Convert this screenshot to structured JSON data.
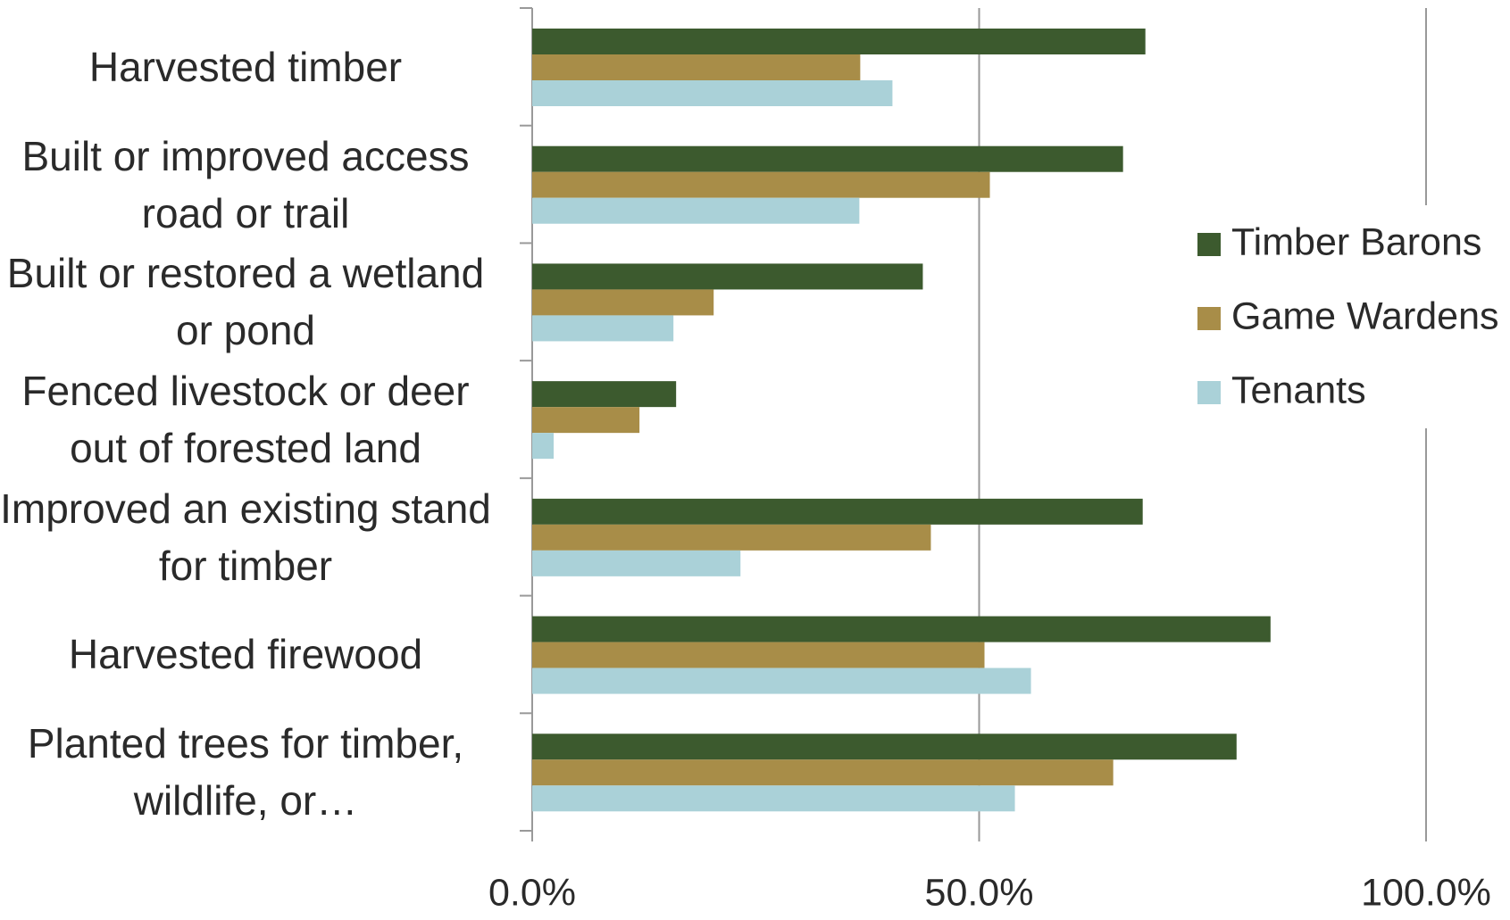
{
  "chart_data": {
    "type": "bar",
    "orientation": "horizontal",
    "categories": [
      "Harvested timber",
      "Built or improved access road or trail",
      "Built or restored a wetland or pond",
      "Fenced livestock or deer out of forested land",
      "Improved an existing stand for timber",
      "Harvested firewood",
      "Planted trees for timber, wildlife, or…"
    ],
    "series": [
      {
        "name": "Timber Barons",
        "color": "#3c5a2e",
        "values": [
          68.6,
          66.1,
          43.7,
          16.1,
          68.3,
          82.6,
          78.8
        ]
      },
      {
        "name": "Game Wardens",
        "color": "#a88d48",
        "values": [
          36.7,
          51.2,
          20.3,
          12.0,
          44.6,
          50.6,
          65.0
        ]
      },
      {
        "name": "Tenants",
        "color": "#aad1d8",
        "values": [
          40.3,
          36.6,
          15.8,
          2.4,
          23.3,
          55.8,
          54.0
        ]
      }
    ],
    "xlim": [
      0,
      100
    ],
    "xticks": [
      {
        "value": 0,
        "label": "0.0%"
      },
      {
        "value": 50,
        "label": "50.0%"
      },
      {
        "value": 100,
        "label": "100.0%"
      }
    ],
    "grid": true,
    "legend": "right"
  }
}
